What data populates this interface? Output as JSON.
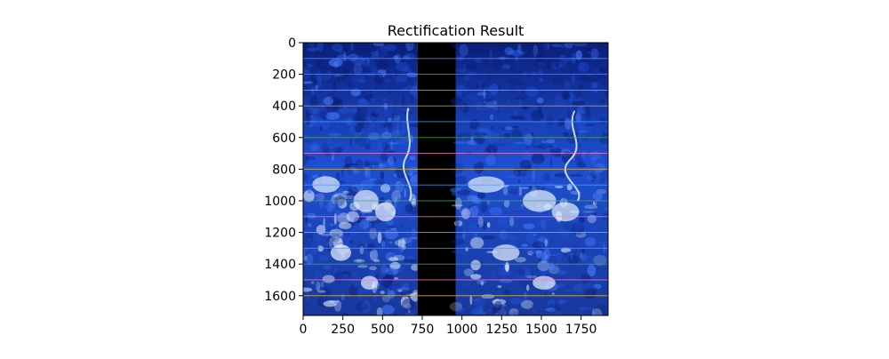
{
  "chart_data": {
    "type": "image",
    "title": "Rectification Result",
    "xlabel": "",
    "ylabel": "",
    "xlim": [
      0,
      1920
    ],
    "ylim": [
      1725,
      0
    ],
    "x_ticks": [
      0,
      250,
      500,
      750,
      1000,
      1250,
      1500,
      1750
    ],
    "y_ticks": [
      0,
      200,
      400,
      600,
      800,
      1000,
      1200,
      1400,
      1600
    ],
    "x_tick_labels": [
      "0",
      "250",
      "500",
      "750",
      "1000",
      "1250",
      "1500",
      "1750"
    ],
    "y_tick_labels": [
      "0",
      "200",
      "400",
      "600",
      "800",
      "1000",
      "1200",
      "1400",
      "1600"
    ],
    "left_image_x": [
      0,
      720
    ],
    "black_gap_x": [
      720,
      960
    ],
    "right_image_x": [
      960,
      1920
    ],
    "epipolar_lines": {
      "y": [
        100,
        200,
        300,
        400,
        500,
        600,
        700,
        800,
        900,
        1000,
        1100,
        1200,
        1300,
        1400,
        1500,
        1600
      ],
      "colors": [
        "#4aa0ff",
        "#4caf50",
        "#ff7bd0",
        "#d1b04a",
        "#4aa0ff",
        "#4caf50",
        "#ff7bd0",
        "#d1b04a",
        "#4aa0ff",
        "#4caf50",
        "#ff7bd0",
        "#d1b04a",
        "#4aa0ff",
        "#4caf50",
        "#ff7bd0",
        "#d1b04a"
      ]
    },
    "grid": false,
    "legend": "none",
    "colors": {
      "dark_blue": "#0b1f7a",
      "mid_blue": "#1f4fd1",
      "light_blue": "#4c7dff",
      "snow": "#e9f4ff",
      "gap": "#000000"
    }
  }
}
